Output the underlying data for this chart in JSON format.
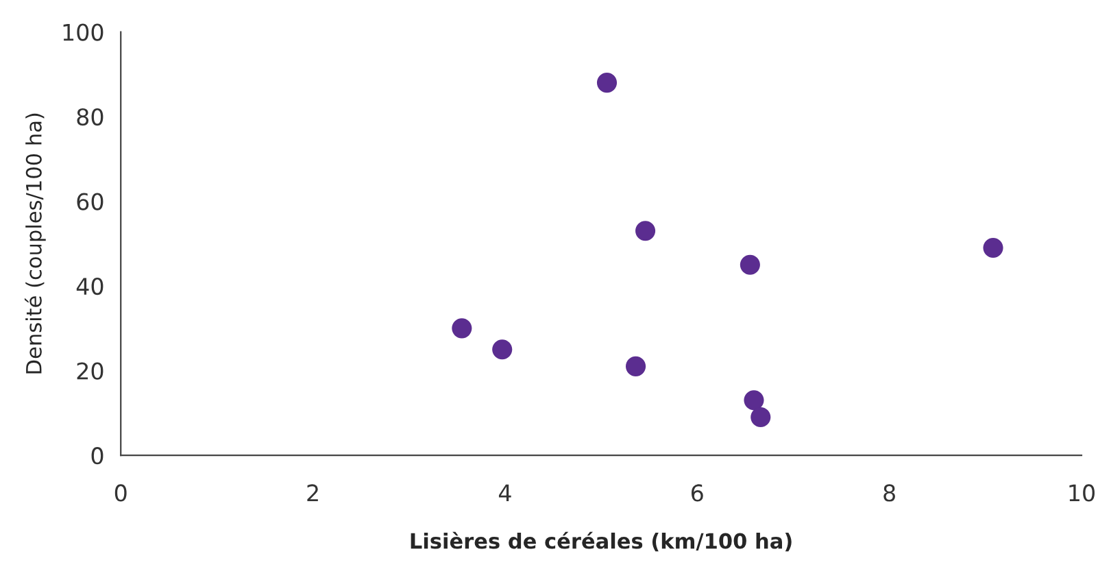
{
  "chart_data": {
    "type": "scatter",
    "xlabel": "Lisières de céréales (km/100 ha)",
    "ylabel": "Densité (couples/100 ha)",
    "x": [
      3.55,
      3.97,
      5.06,
      5.46,
      5.36,
      6.55,
      6.59,
      6.66,
      9.08
    ],
    "series": [
      {
        "color": "#5b2d90",
        "values": [
          30,
          25,
          88,
          53,
          21,
          45,
          13,
          9,
          49
        ]
      }
    ],
    "xlim": [
      0,
      10
    ],
    "xticks": [
      0,
      2,
      4,
      6,
      8,
      10
    ],
    "ylim": [
      0,
      100
    ],
    "yticks": [
      0,
      20,
      40,
      60,
      80,
      100
    ],
    "grid": false,
    "legend": false,
    "marker": "circle"
  }
}
